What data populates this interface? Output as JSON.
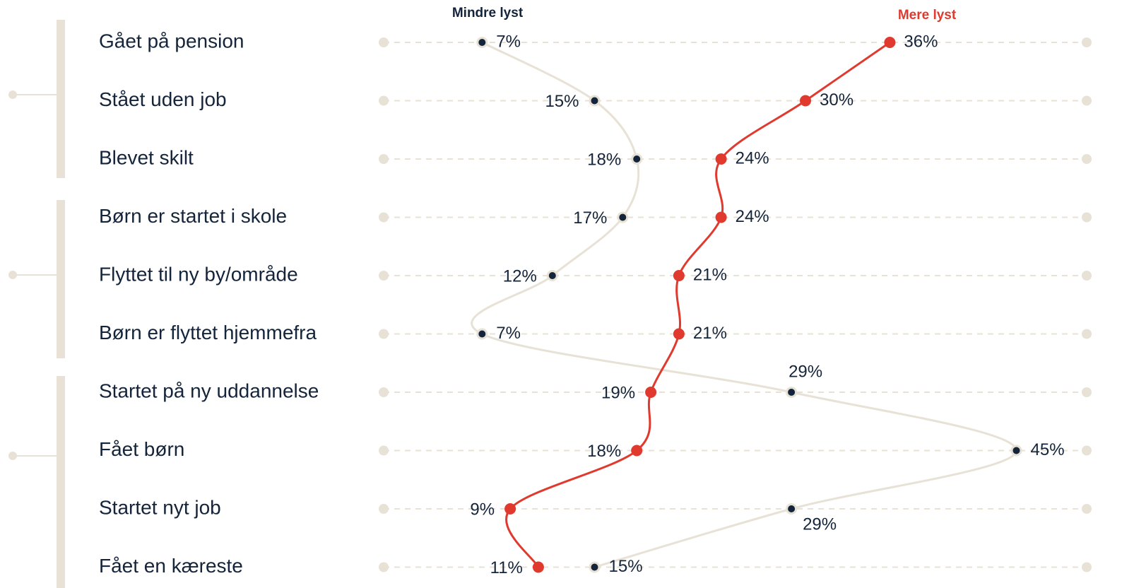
{
  "chart_data": {
    "type": "line",
    "orientation": "horizontal-values",
    "categories": [
      "Gået på pension",
      "Stået uden job",
      "Blevet skilt",
      "Børn er startet i skole",
      "Flyttet til ny by/område",
      "Børn er flyttet hjemmefra",
      "Startet på ny uddannelse",
      "Fået børn",
      "Startet nyt job",
      "Fået en kæreste"
    ],
    "xlim": [
      0,
      50
    ],
    "series": [
      {
        "name": "Mindre lyst",
        "color": "#e8e2d6",
        "marker_color": "#14243a",
        "values": [
          7,
          15,
          18,
          17,
          12,
          7,
          29,
          45,
          29,
          15
        ],
        "value_labels": [
          "7%",
          "15%",
          "18%",
          "17%",
          "12%",
          "7%",
          "29%",
          "45%",
          "29%",
          "15%"
        ]
      },
      {
        "name": "Mere lyst",
        "color": "#e03a2f",
        "marker_color": "#e03a2f",
        "values": [
          36,
          30,
          24,
          24,
          21,
          21,
          19,
          18,
          9,
          11
        ],
        "value_labels": [
          "36%",
          "30%",
          "24%",
          "24%",
          "21%",
          "21%",
          "19%",
          "18%",
          "9%",
          "11%"
        ]
      }
    ]
  }
}
